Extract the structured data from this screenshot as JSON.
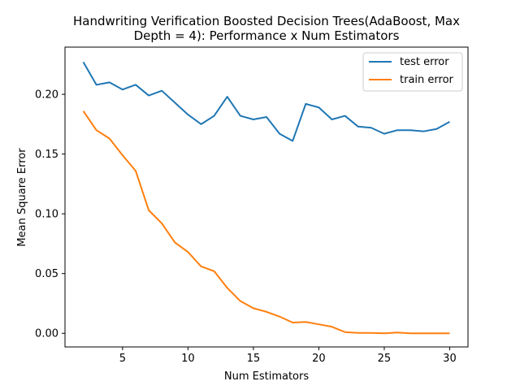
{
  "chart_data": {
    "type": "line",
    "title_lines": [
      "Handwriting Verification Boosted Decision Trees(AdaBoost, Max",
      "Depth = 4): Performance x Num Estimators"
    ],
    "xlabel": "Num Estimators",
    "ylabel": "Mean Square Error",
    "xlim": [
      0.6,
      31.4
    ],
    "ylim": [
      -0.0114,
      0.2395
    ],
    "xticks": [
      5,
      10,
      15,
      20,
      25,
      30
    ],
    "xtick_labels": [
      "5",
      "10",
      "15",
      "20",
      "25",
      "30"
    ],
    "yticks": [
      0.0,
      0.05,
      0.1,
      0.15,
      0.2
    ],
    "ytick_labels": [
      "0.00",
      "0.05",
      "0.10",
      "0.15",
      "0.20"
    ],
    "grid": false,
    "legend_position": "upper right",
    "x": [
      2,
      3,
      4,
      5,
      6,
      7,
      8,
      9,
      10,
      11,
      12,
      13,
      14,
      15,
      16,
      17,
      18,
      19,
      20,
      21,
      22,
      23,
      24,
      25,
      26,
      27,
      28,
      29,
      30
    ],
    "series": [
      {
        "name": "test error",
        "color": "#1f77b4",
        "values": [
          0.227,
          0.208,
          0.21,
          0.204,
          0.208,
          0.199,
          0.203,
          0.193,
          0.183,
          0.175,
          0.182,
          0.198,
          0.182,
          0.179,
          0.181,
          0.167,
          0.161,
          0.192,
          0.189,
          0.179,
          0.182,
          0.173,
          0.172,
          0.167,
          0.17,
          0.17,
          0.169,
          0.171,
          0.177
        ]
      },
      {
        "name": "train error",
        "color": "#ff7f0e",
        "values": [
          0.186,
          0.17,
          0.163,
          0.149,
          0.136,
          0.103,
          0.092,
          0.076,
          0.068,
          0.056,
          0.052,
          0.038,
          0.027,
          0.021,
          0.018,
          0.014,
          0.009,
          0.0095,
          0.0075,
          0.0055,
          0.001,
          0.0003,
          0.0003,
          0.0,
          0.0007,
          0.0,
          0.0,
          0.0,
          0.0
        ]
      }
    ]
  }
}
